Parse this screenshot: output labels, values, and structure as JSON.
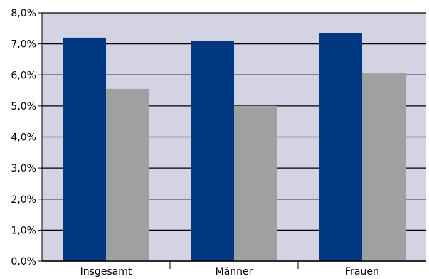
{
  "chart_data": {
    "type": "bar",
    "categories": [
      "Insgesamt",
      "Männer",
      "Frauen"
    ],
    "series": [
      {
        "values": [
          7.2,
          7.1,
          7.35
        ],
        "color": "#003781"
      },
      {
        "values": [
          5.55,
          5.0,
          6.05
        ],
        "color": "#A0A0A0"
      }
    ],
    "ylim": [
      0,
      8
    ],
    "y_ticks": [
      0,
      1,
      2,
      3,
      4,
      5,
      6,
      7,
      8
    ],
    "y_tick_labels": [
      "0,0%",
      "1,0%",
      "2,0%",
      "3,0%",
      "4,0%",
      "5,0%",
      "6,0%",
      "7,0%",
      "8,0%"
    ],
    "grid": true,
    "plot_background": "#D3D3E3"
  }
}
